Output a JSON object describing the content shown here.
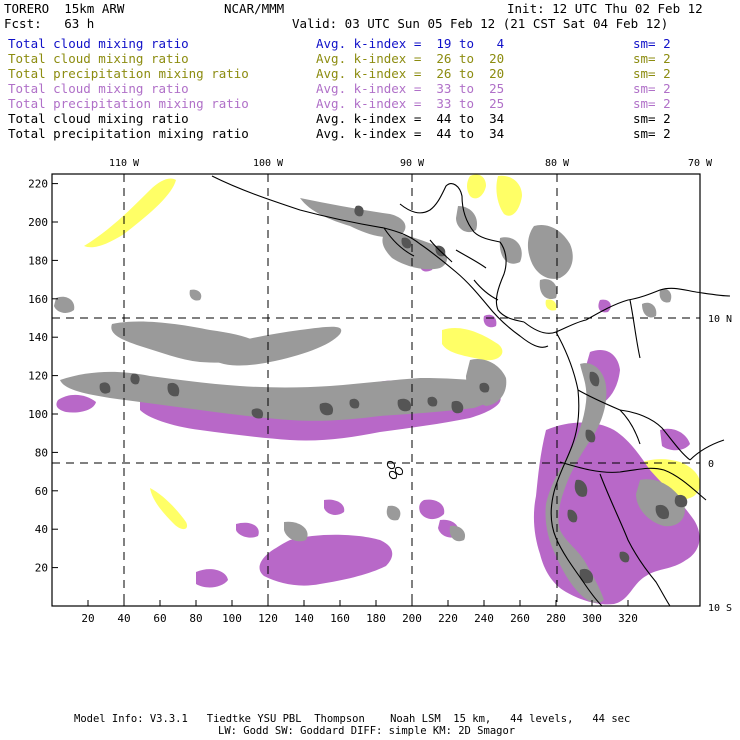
{
  "header": {
    "model": "TORERO  15km ARW",
    "institution": "NCAR/MMM",
    "init": "Init: 12 UTC Thu 02 Feb 12",
    "forecast": "Fcst:   63 h",
    "valid": "Valid: 03 UTC Sun 05 Feb 12 (21 CST Sat 04 Feb 12)"
  },
  "legend": [
    {
      "field": "Total cloud mixing ratio",
      "kindex": "Avg. k-index =  19 to   4",
      "sm": "sm= 2",
      "color": "#1010c8"
    },
    {
      "field": "Total cloud mixing ratio",
      "kindex": "Avg. k-index =  26 to  20",
      "sm": "sm= 2",
      "color": "#8c8c10"
    },
    {
      "field": "Total precipitation mixing ratio",
      "kindex": "Avg. k-index =  26 to  20",
      "sm": "sm= 2",
      "color": "#8c8c10"
    },
    {
      "field": "Total cloud mixing ratio",
      "kindex": "Avg. k-index =  33 to  25",
      "sm": "sm= 2",
      "color": "#b070c8"
    },
    {
      "field": "Total precipitation mixing ratio",
      "kindex": "Avg. k-index =  33 to  25",
      "sm": "sm= 2",
      "color": "#b070c8"
    },
    {
      "field": "Total cloud mixing ratio",
      "kindex": "Avg. k-index =  44 to  34",
      "sm": "sm= 2",
      "color": "#000000"
    },
    {
      "field": "Total precipitation mixing ratio",
      "kindex": "Avg. k-index =  44 to  34",
      "sm": "sm= 2",
      "color": "#000000"
    }
  ],
  "axes": {
    "x_ticks": [
      "20",
      "40",
      "60",
      "80",
      "100",
      "120",
      "140",
      "160",
      "180",
      "200",
      "220",
      "240",
      "260",
      "280",
      "300",
      "320"
    ],
    "y_ticks": [
      "20",
      "40",
      "60",
      "80",
      "100",
      "120",
      "140",
      "160",
      "180",
      "200",
      "220"
    ],
    "lon_labels": [
      "110 W",
      "100 W",
      "90 W",
      "80 W",
      "70 W"
    ],
    "lat_labels": [
      "10 N",
      "0",
      "10 S"
    ]
  },
  "colors": {
    "gray_cloud": "#9a9a9a",
    "dark_cloud": "#555555",
    "yellow_field": "#ffff66",
    "purple_field": "#b868c8",
    "coastline": "#000000"
  },
  "footer": {
    "line1": "Model Info: V3.3.1   Tiedtke YSU PBL  Thompson    Noah LSM  15 km,   44 levels,   44 sec",
    "line2": "LW: Godd SW: Goddard DIFF: simple KM: 2D Smagor"
  }
}
